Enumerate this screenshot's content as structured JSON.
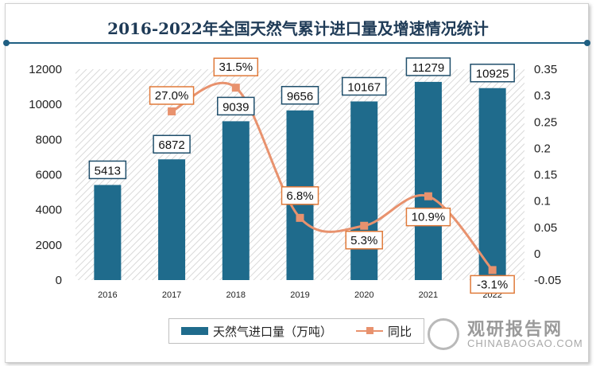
{
  "chart_data": {
    "type": "bar",
    "title": "2016-2022年全国天然气累计进口量及增速情况统计",
    "categories": [
      "2016",
      "2017",
      "2018",
      "2019",
      "2020",
      "2021",
      "2022"
    ],
    "series": [
      {
        "name": "天然气进口量（万吨）",
        "type": "bar",
        "axis": "left",
        "values": [
          5413,
          6872,
          9039,
          9656,
          10167,
          11279,
          10925
        ],
        "labels": [
          "5413",
          "6872",
          "9039",
          "9656",
          "10167",
          "11279",
          "10925"
        ]
      },
      {
        "name": "同比",
        "type": "line",
        "axis": "right",
        "values": [
          null,
          0.27,
          0.315,
          0.068,
          0.053,
          0.109,
          -0.031
        ],
        "labels": [
          "",
          "27.0%",
          "31.5%",
          "6.8%",
          "5.3%",
          "10.9%",
          "-3.1%"
        ]
      }
    ],
    "y_left": {
      "ylim": [
        0,
        12000
      ],
      "ticks": [
        "0",
        "2000",
        "4000",
        "6000",
        "8000",
        "10000",
        "12000"
      ]
    },
    "y_right": {
      "ylim": [
        -0.05,
        0.35
      ],
      "ticks": [
        "-0.05",
        "0",
        "0.05",
        "0.1",
        "0.15",
        "0.2",
        "0.25",
        "0.3",
        "0.35"
      ]
    },
    "legend_position": "bottom",
    "colors": {
      "bar": "#1f6b8c",
      "line": "#e8926e",
      "bar_label_border": "#1f4e6b",
      "line_label_border": "#e07a3a"
    }
  },
  "watermark": {
    "text": "观研报告网",
    "url": "CHINABAOGAO.COM"
  }
}
